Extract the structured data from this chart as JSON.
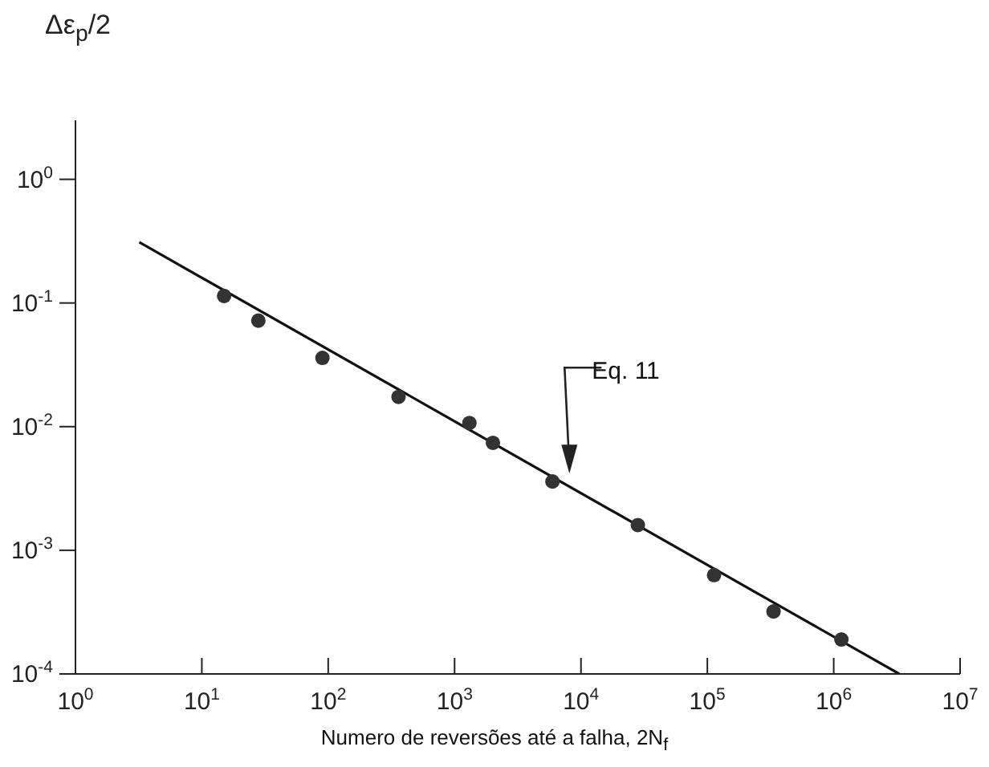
{
  "chart_data": {
    "type": "scatter",
    "ylabel": "Δε$_{p}$/2",
    "xlabel": "Numero de reversões até a falha, 2N$_{f}$",
    "log": "xy",
    "grid": false,
    "x": [
      15,
      28,
      90,
      360,
      1310,
      2010,
      5950,
      28200,
      113000,
      334000,
      1150000
    ],
    "series": [
      {
        "marker": "circle",
        "color": "#333333",
        "values": [
          0.114,
          0.072,
          0.036,
          0.0174,
          0.0107,
          0.0074,
          0.0036,
          0.0016,
          0.00063,
          0.00032,
          0.00019
        ]
      },
      {
        "type": "line",
        "marker": "none",
        "color": "#111111",
        "x": [
          3.2,
          3300000
        ],
        "values": [
          0.31,
          0.0001
        ]
      }
    ],
    "xlim": [
      1,
      10000000
    ],
    "ylim": [
      0.0001,
      3
    ],
    "xticks": [
      {
        "value": 1,
        "label": "10$^{0}$"
      },
      {
        "value": 10,
        "label": "10$^{1}$"
      },
      {
        "value": 100,
        "label": "10$^{2}$"
      },
      {
        "value": 1000,
        "label": "10$^{3}$"
      },
      {
        "value": 10000,
        "label": "10$^{4}$"
      },
      {
        "value": 100000,
        "label": "10$^{5}$"
      },
      {
        "value": 1000000,
        "label": "10$^{6}$"
      },
      {
        "value": 10000000,
        "label": "10$^{7}$"
      }
    ],
    "yticks": [
      {
        "value": 0.0001,
        "label": "10$^{-4}$"
      },
      {
        "value": 0.001,
        "label": "10$^{-3}$"
      },
      {
        "value": 0.01,
        "label": "10$^{-2}$"
      },
      {
        "value": 0.1,
        "label": "10$^{-1}$"
      },
      {
        "value": 1,
        "label": "10$^{0}$"
      }
    ],
    "annotations": [
      {
        "text": "Eq. 11",
        "x": 8100,
        "y": 0.0037
      }
    ]
  }
}
